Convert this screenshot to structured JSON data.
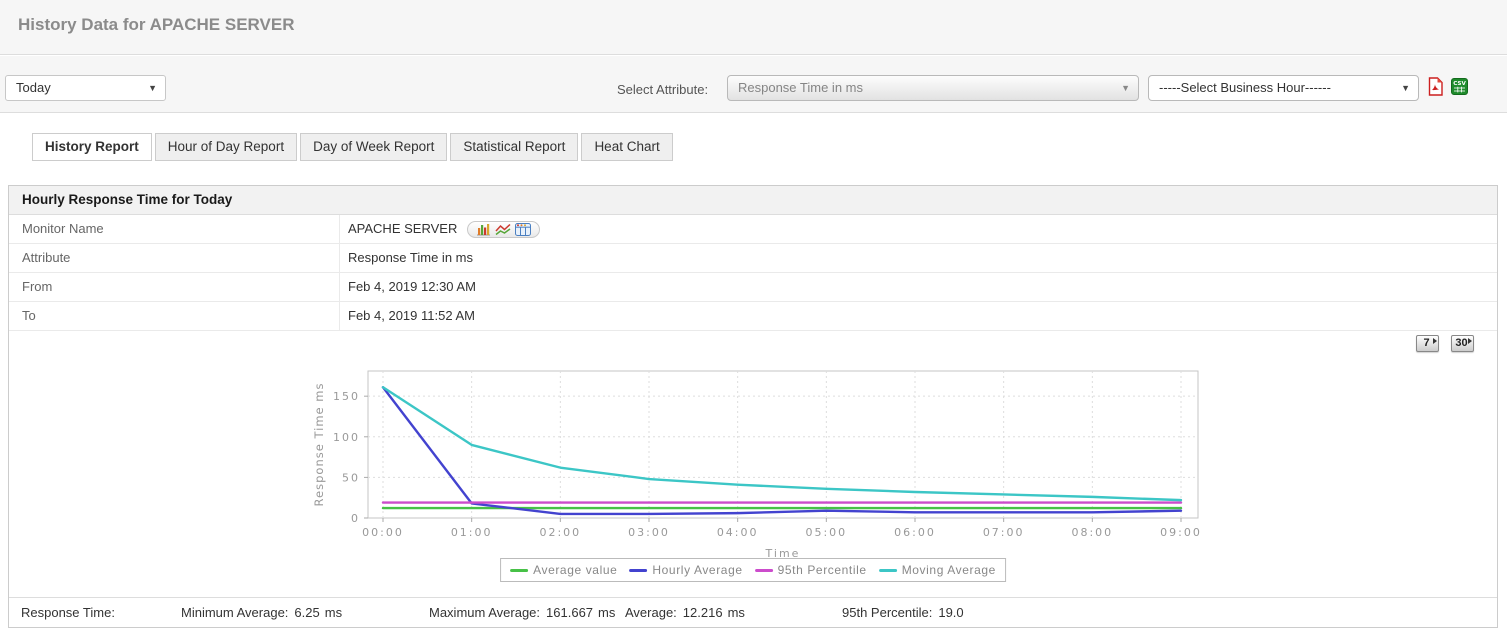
{
  "header": {
    "title": "History Data for APACHE SERVER"
  },
  "toolbar": {
    "period_select": {
      "value": "Today"
    },
    "attribute_label": "Select Attribute:",
    "attribute_select": {
      "value": "Response Time in ms"
    },
    "business_hour_select": {
      "value": "-----Select Business Hour------"
    },
    "export": {
      "pdf": "pdf-export",
      "csv": "csv-export"
    }
  },
  "tabs": [
    {
      "label": "History Report",
      "active": true
    },
    {
      "label": "Hour of Day Report",
      "active": false
    },
    {
      "label": "Day of Week Report",
      "active": false
    },
    {
      "label": "Statistical Report",
      "active": false
    },
    {
      "label": "Heat Chart",
      "active": false
    }
  ],
  "report": {
    "title": "Hourly Response Time for Today",
    "rows": [
      {
        "label": "Monitor Name",
        "value": "APACHE SERVER"
      },
      {
        "label": "Attribute",
        "value": "Response Time in ms"
      },
      {
        "label": "From",
        "value": "Feb 4, 2019 12:30 AM"
      },
      {
        "label": "To",
        "value": "Feb 4, 2019 11:52 AM"
      }
    ],
    "monitor_icons": [
      "bar-chart-icon",
      "line-chart-icon",
      "data-table-icon"
    ],
    "range_buttons": [
      "7",
      "30"
    ]
  },
  "chart_data": {
    "type": "line",
    "title": "Hourly Response Time for Today",
    "xlabel": "Time",
    "ylabel": "Response Time ms",
    "x_ticks": [
      "00:00",
      "01:00",
      "02:00",
      "03:00",
      "04:00",
      "05:00",
      "06:00",
      "07:00",
      "08:00",
      "09:00"
    ],
    "y_ticks": [
      0,
      50,
      100,
      150
    ],
    "ylim": [
      0,
      181
    ],
    "grid": "dashed",
    "legend_position": "bottom",
    "series": [
      {
        "name": "Average value",
        "color": "#47c147",
        "values": [
          12.2,
          12.2,
          12.2,
          12.2,
          12.2,
          12.2,
          12.2,
          12.2,
          12.2,
          12.2
        ]
      },
      {
        "name": "Hourly Average",
        "color": "#4343cf",
        "values": [
          161,
          18,
          5,
          5,
          6,
          9,
          7,
          7,
          7,
          9
        ]
      },
      {
        "name": "95th Percentile",
        "color": "#cc4ccc",
        "values": [
          19,
          19,
          19,
          19,
          19,
          19,
          19,
          19,
          19,
          19
        ]
      },
      {
        "name": "Moving Average",
        "color": "#3cc6c6",
        "values": [
          161,
          90,
          62,
          48,
          41,
          36,
          32,
          29,
          26,
          22
        ]
      }
    ]
  },
  "summary": {
    "label": "Response Time:",
    "stats": [
      {
        "label": "Minimum Average:",
        "value": "6.25",
        "unit": "ms"
      },
      {
        "label": "Maximum Average:",
        "value": "161.667",
        "unit": "ms"
      },
      {
        "label": "Average:",
        "value": "12.216",
        "unit": "ms"
      },
      {
        "label": "95th Percentile:",
        "value": "19.0",
        "unit": ""
      }
    ]
  }
}
